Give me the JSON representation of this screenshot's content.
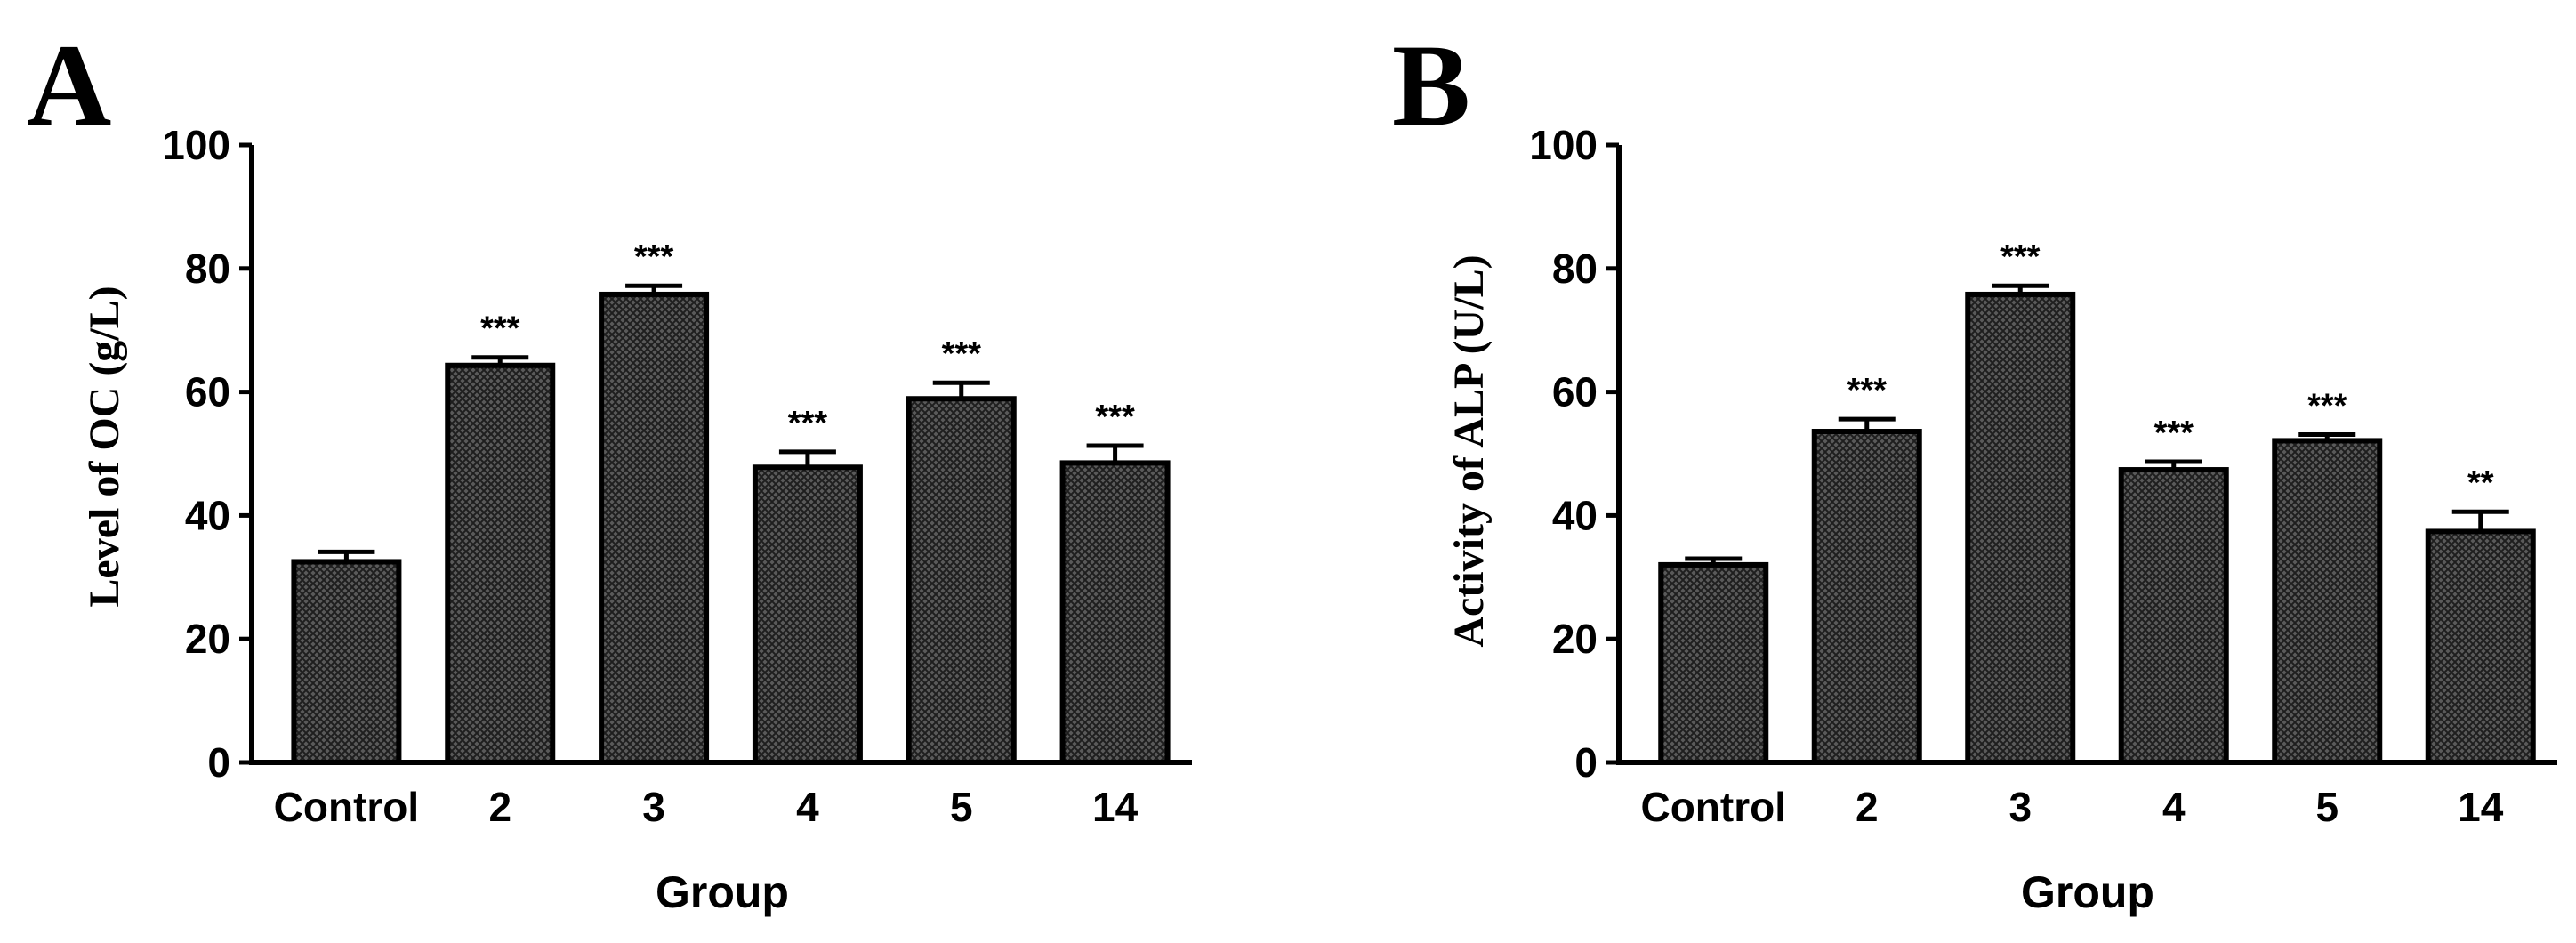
{
  "chart_data": [
    {
      "panel": "A",
      "type": "bar",
      "categories": [
        "Control",
        "2",
        "3",
        "4",
        "5",
        "14"
      ],
      "values": [
        32.5,
        64.3,
        75.8,
        47.8,
        58.9,
        48.5
      ],
      "errors": [
        1.6,
        1.3,
        1.4,
        2.5,
        2.6,
        2.8
      ],
      "significance": [
        "",
        "***",
        "***",
        "***",
        "***",
        "***"
      ],
      "xlabel": "Group",
      "ylabel": "Level of OC (g/L)",
      "ylim": [
        0,
        100
      ],
      "yticks": [
        "0",
        "20",
        "40",
        "60",
        "80",
        "100"
      ],
      "bar_color": "#3a3a3a"
    },
    {
      "panel": "B",
      "type": "bar",
      "categories": [
        "Control",
        "2",
        "3",
        "4",
        "5",
        "14"
      ],
      "values": [
        32.0,
        53.6,
        75.8,
        47.4,
        52.1,
        37.4
      ],
      "errors": [
        1.0,
        2.0,
        1.4,
        1.3,
        1.0,
        3.2
      ],
      "significance": [
        "",
        "***",
        "***",
        "***",
        "***",
        "**"
      ],
      "xlabel": "Group",
      "ylabel": "Activity of ALP (U/L)",
      "ylim": [
        0,
        100
      ],
      "yticks": [
        "0",
        "20",
        "40",
        "60",
        "80",
        "100"
      ],
      "bar_color": "#3a3a3a"
    }
  ]
}
